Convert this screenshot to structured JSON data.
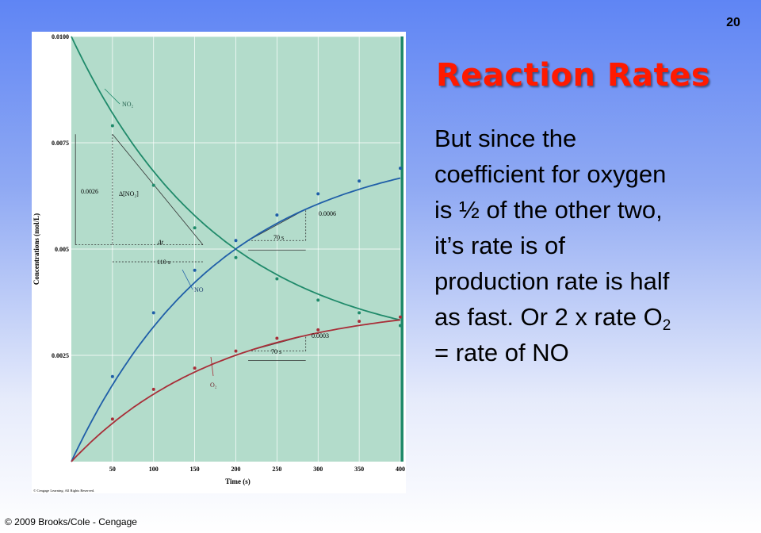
{
  "slide": {
    "number": "20",
    "title": "Reaction Rates",
    "body_lines": [
      "But since the",
      "coefficient for oxygen",
      "is ½ of the other two,",
      "it’s rate is of",
      "production rate is half"
    ],
    "body_line6_main": "as fast.  Or 2 x rate O",
    "body_line6_sub": "2",
    "body_line7": "= rate of NO",
    "footer": "© 2009 Brooks/Cole - Cengage"
  },
  "colors": {
    "plot_bg": "#b3dccb",
    "no2": "#1f8a6a",
    "no": "#1f5ea8",
    "o2": "#a82e38",
    "annotation": "#333333",
    "title": "#ff1a00"
  },
  "chart_data": {
    "type": "line",
    "xlabel": "Time (s)",
    "ylabel": "Concentrations (mol/L)",
    "x_ticks": [
      50,
      100,
      150,
      200,
      250,
      300,
      350,
      400
    ],
    "y_ticks": [
      {
        "value": 0.0025,
        "label": "0.0025"
      },
      {
        "value": 0.005,
        "label": "0.005"
      },
      {
        "value": 0.0075,
        "label": "0.0075"
      },
      {
        "value": 0.01,
        "label": "0.0100"
      }
    ],
    "xlim": [
      0,
      400
    ],
    "ylim": [
      0,
      0.01
    ],
    "grid": true,
    "copyright": "© Cengage Learning. All Rights Reserved.",
    "series": [
      {
        "name": "NO₂",
        "color_key": "no2",
        "x": [
          0,
          50,
          100,
          150,
          200,
          250,
          300,
          350,
          400
        ],
        "y": [
          0.01,
          0.0079,
          0.0065,
          0.0055,
          0.0048,
          0.0043,
          0.0038,
          0.0035,
          0.0032
        ]
      },
      {
        "name": "NO",
        "color_key": "no",
        "x": [
          0,
          50,
          100,
          150,
          200,
          250,
          300,
          350,
          400
        ],
        "y": [
          0,
          0.002,
          0.0035,
          0.0045,
          0.0052,
          0.0058,
          0.0063,
          0.0066,
          0.0069
        ]
      },
      {
        "name": "O₂",
        "color_key": "o2",
        "x": [
          0,
          50,
          100,
          150,
          200,
          250,
          300,
          350,
          400
        ],
        "y": [
          0,
          0.001,
          0.0017,
          0.0022,
          0.0026,
          0.0029,
          0.0031,
          0.0033,
          0.0034
        ]
      }
    ],
    "annotations": {
      "no2_label": "NO₂",
      "no_label": "NO",
      "o2_label": "O₂",
      "delta_no2": "Δ[NO₂]",
      "delta_no2_value": "0.0026",
      "delta_t": "Δt",
      "delta_t_value": "110 s",
      "no_slope_time": "70 s",
      "no_slope_value": "0.0006",
      "o2_slope_time": "70 s",
      "o2_slope_value": "0.0003"
    }
  }
}
